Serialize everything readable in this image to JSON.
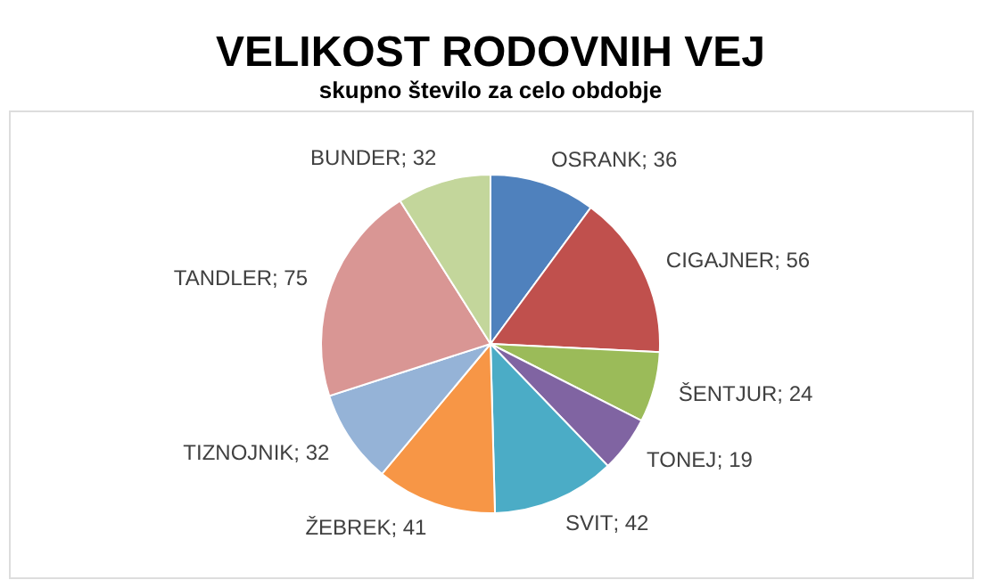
{
  "chart_data": {
    "type": "pie",
    "title": "VELIKOST RODOVNIH VEJ",
    "subtitle": "skupno število za celo obdobje",
    "categories": [
      "OSRANK",
      "CIGAJNER",
      "ŠENTJUR",
      "TONEJ",
      "SVIT",
      "ŽEBREK",
      "TIZNOJNIK",
      "TANDLER",
      "BUNDER"
    ],
    "values": [
      36,
      56,
      24,
      19,
      42,
      41,
      32,
      75,
      32
    ],
    "colors": [
      "#4f81bd",
      "#c0504d",
      "#9bbb59",
      "#8064a2",
      "#4bacc6",
      "#f79646",
      "#95b3d7",
      "#d99694",
      "#c3d69b"
    ],
    "value_labels": [
      "; 36",
      "; 56",
      "; 24",
      "; 19",
      "; 42",
      "; 41",
      "; 32",
      "; 75",
      "; 32"
    ]
  }
}
